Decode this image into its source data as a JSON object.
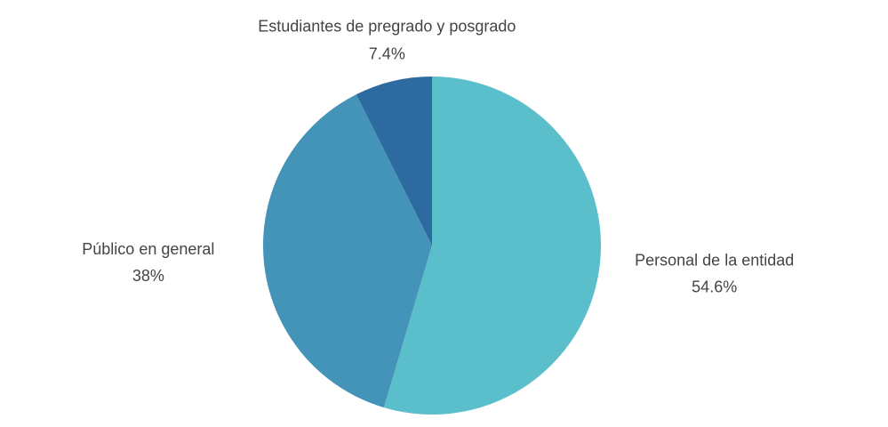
{
  "chart_data": {
    "type": "pie",
    "categories": [
      "Personal de la entidad",
      "Público en general",
      "Estudiantes de pregrado y posgrado"
    ],
    "values": [
      54.6,
      38,
      7.4
    ],
    "value_labels": [
      "54.6%",
      "38%",
      "7.4%"
    ],
    "colors": [
      "#5bbfcb",
      "#4394b8",
      "#2d6a9f"
    ]
  }
}
